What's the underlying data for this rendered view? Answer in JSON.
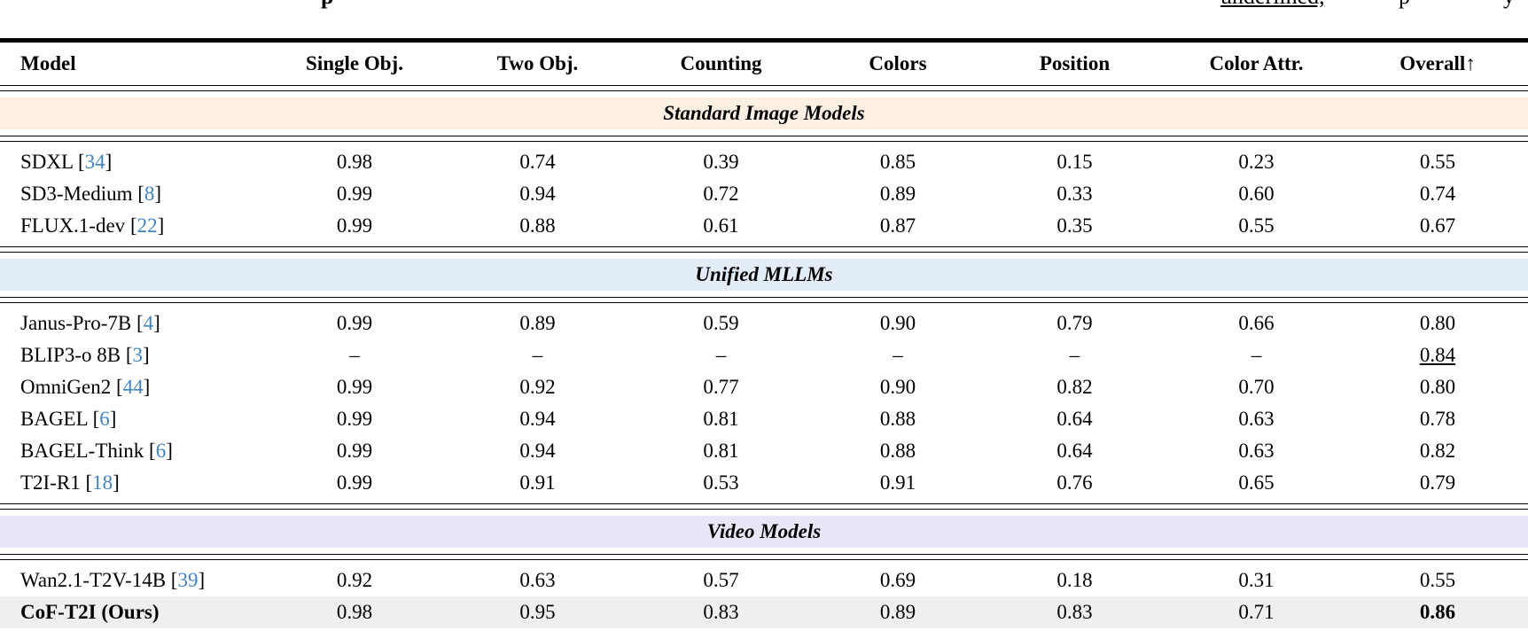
{
  "caption_fragments": {
    "left": "p",
    "right_underlined": "underlined,",
    "right_p": "p",
    "right_y": "y"
  },
  "colors": {
    "citation_blue": "#3d85c6",
    "band_standard_image": "#fdf0e3",
    "band_unified_mllms": "#e2edf8",
    "band_video_models": "#e7e7f9",
    "highlight_row_gray": "#efefef"
  },
  "table": {
    "columns": [
      "Model",
      "Single Obj.",
      "Two Obj.",
      "Counting",
      "Colors",
      "Position",
      "Color Attr.",
      "Overall↑"
    ],
    "sections": [
      {
        "title": "Standard Image Models",
        "band_color": "#fdf0e3",
        "rows": [
          {
            "name": "SDXL",
            "cite": "34",
            "values": [
              "0.98",
              "0.74",
              "0.39",
              "0.85",
              "0.15",
              "0.23",
              "0.55"
            ]
          },
          {
            "name": "SD3-Medium",
            "cite": "8",
            "values": [
              "0.99",
              "0.94",
              "0.72",
              "0.89",
              "0.33",
              "0.60",
              "0.74"
            ]
          },
          {
            "name": "FLUX.1-dev",
            "cite": "22",
            "values": [
              "0.99",
              "0.88",
              "0.61",
              "0.87",
              "0.35",
              "0.55",
              "0.67"
            ]
          }
        ]
      },
      {
        "title": "Unified MLLMs",
        "band_color": "#e2edf8",
        "rows": [
          {
            "name": "Janus-Pro-7B",
            "cite": "4",
            "values": [
              "0.99",
              "0.89",
              "0.59",
              "0.90",
              "0.79",
              "0.66",
              "0.80"
            ]
          },
          {
            "name": "BLIP3-o 8B",
            "cite": "3",
            "values": [
              "–",
              "–",
              "–",
              "–",
              "–",
              "–",
              "0.84"
            ],
            "styles": [
              "",
              "",
              "",
              "",
              "",
              "",
              "underline"
            ]
          },
          {
            "name": "OmniGen2",
            "cite": "44",
            "values": [
              "0.99",
              "0.92",
              "0.77",
              "0.90",
              "0.82",
              "0.70",
              "0.80"
            ]
          },
          {
            "name": "BAGEL",
            "cite": "6",
            "values": [
              "0.99",
              "0.94",
              "0.81",
              "0.88",
              "0.64",
              "0.63",
              "0.78"
            ]
          },
          {
            "name": "BAGEL-Think",
            "cite": "6",
            "values": [
              "0.99",
              "0.94",
              "0.81",
              "0.88",
              "0.64",
              "0.63",
              "0.82"
            ]
          },
          {
            "name": "T2I-R1",
            "cite": "18",
            "values": [
              "0.99",
              "0.91",
              "0.53",
              "0.91",
              "0.76",
              "0.65",
              "0.79"
            ]
          }
        ]
      },
      {
        "title": "Video Models",
        "band_color": "#e7e7f9",
        "rows": [
          {
            "name": "Wan2.1-T2V-14B",
            "cite": "39",
            "values": [
              "0.92",
              "0.63",
              "0.57",
              "0.69",
              "0.18",
              "0.31",
              "0.55"
            ]
          },
          {
            "name": "CoF-T2I (Ours)",
            "cite": "",
            "bold": true,
            "highlight": true,
            "values": [
              "0.98",
              "0.95",
              "0.83",
              "0.89",
              "0.83",
              "0.71",
              "0.86"
            ],
            "styles": [
              "",
              "",
              "",
              "",
              "",
              "",
              "bold"
            ]
          }
        ]
      }
    ]
  }
}
